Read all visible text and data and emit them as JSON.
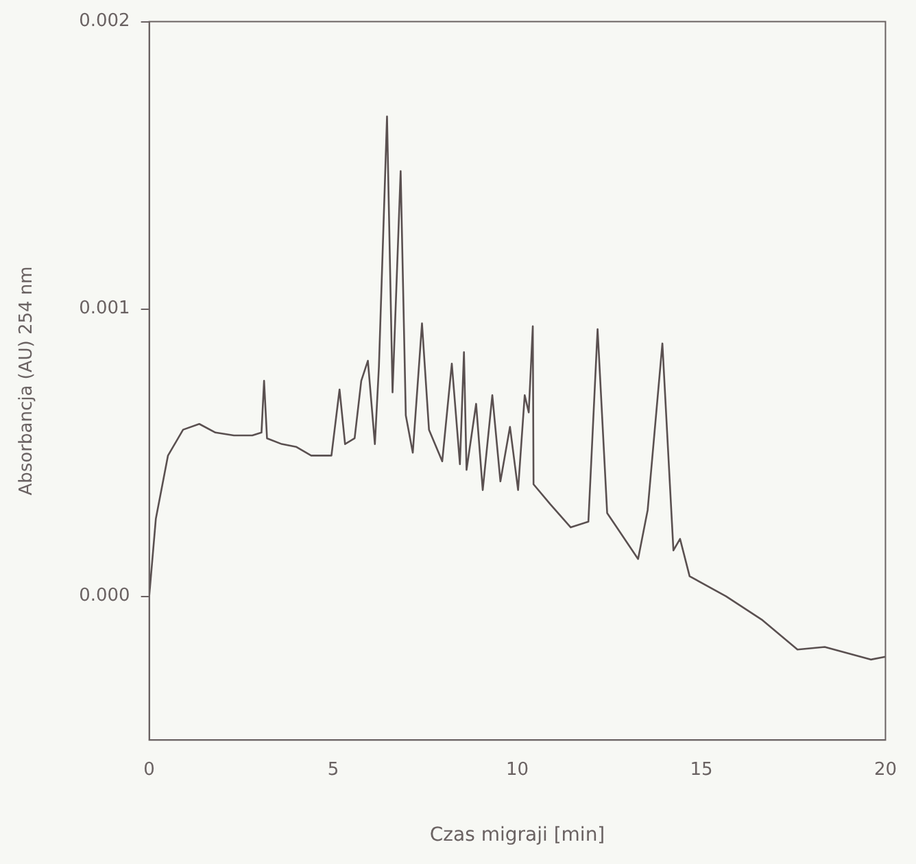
{
  "chart_data": {
    "type": "line",
    "xlabel": "Czas migraji [min]",
    "ylabel": "Absorbancja (AU) 254 nm",
    "xlim": [
      0,
      20
    ],
    "xticks": [
      0,
      5,
      10,
      15,
      20
    ],
    "ylim": [
      -0.0005,
      0.002
    ],
    "yticks": [
      {
        "value": 0,
        "label": "0.000"
      },
      {
        "value": 0.001,
        "label": "0.001"
      },
      {
        "value": 0.002,
        "label": "0.002"
      }
    ],
    "grid": false,
    "legend": false,
    "marker": "none",
    "line_style": "solid",
    "series": [
      {
        "color": "#5a5050",
        "x": [
          0,
          0.18,
          0.51,
          0.92,
          1.36,
          1.8,
          2.3,
          2.8,
          3.05,
          3.12,
          3.2,
          3.6,
          4.0,
          4.4,
          4.95,
          5.17,
          5.32,
          5.58,
          5.76,
          5.94,
          6.13,
          6.24,
          6.46,
          6.61,
          6.83,
          6.97,
          7.16,
          7.41,
          7.6,
          7.96,
          8.22,
          8.44,
          8.55,
          8.62,
          8.88,
          9.06,
          9.32,
          9.54,
          9.8,
          10.02,
          10.2,
          10.31,
          10.42,
          10.44,
          10.9,
          11.45,
          11.93,
          12.18,
          12.44,
          13.28,
          13.54,
          13.94,
          14.24,
          14.42,
          14.68,
          15.67,
          16.66,
          17.61,
          18.35,
          19.6,
          20
        ],
        "values": [
          0,
          0.00027,
          0.00049,
          0.00058,
          0.0006,
          0.00057,
          0.00056,
          0.00056,
          0.00057,
          0.00075,
          0.00055,
          0.00053,
          0.00052,
          0.00049,
          0.00049,
          0.00072,
          0.00053,
          0.00055,
          0.00075,
          0.00082,
          0.00053,
          0.0008,
          0.00167,
          0.00071,
          0.00148,
          0.00063,
          0.0005,
          0.00095,
          0.00058,
          0.00047,
          0.00081,
          0.00046,
          0.00085,
          0.00044,
          0.00067,
          0.00037,
          0.0007,
          0.0004,
          0.00059,
          0.00037,
          0.0007,
          0.00064,
          0.00094,
          0.00039,
          0.00032,
          0.00024,
          0.00026,
          0.00093,
          0.00029,
          0.00013,
          0.0003,
          0.00088,
          0.00016,
          0.0002,
          7e-05,
          0,
          -8.3e-05,
          -0.000185,
          -0.000176,
          -0.00022,
          -0.00021
        ]
      }
    ]
  }
}
